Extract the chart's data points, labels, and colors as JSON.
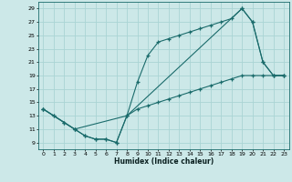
{
  "xlabel": "Humidex (Indice chaleur)",
  "bg_color": "#cce8e8",
  "line_color": "#1a6b6b",
  "grid_color": "#aad4d4",
  "xlim": [
    -0.5,
    23.5
  ],
  "ylim": [
    8.0,
    30.0
  ],
  "xticks": [
    0,
    1,
    2,
    3,
    4,
    5,
    6,
    7,
    8,
    9,
    10,
    11,
    12,
    13,
    14,
    15,
    16,
    17,
    18,
    19,
    20,
    21,
    22,
    23
  ],
  "yticks": [
    9,
    11,
    13,
    15,
    17,
    19,
    21,
    23,
    25,
    27,
    29
  ],
  "line1_x": [
    0,
    1,
    2,
    3,
    4,
    5,
    6,
    7,
    8,
    9,
    10,
    11,
    12,
    13,
    14,
    15,
    16,
    17,
    18,
    19,
    20,
    21,
    22,
    23
  ],
  "line1_y": [
    14,
    13,
    12,
    11,
    10,
    9.5,
    9.5,
    9,
    13,
    18,
    22,
    24,
    24.5,
    25,
    25.5,
    26,
    26.5,
    27,
    27.5,
    29,
    27,
    21,
    19,
    19
  ],
  "line2_x": [
    0,
    1,
    2,
    3,
    4,
    5,
    6,
    7,
    8,
    9,
    10,
    11,
    12,
    13,
    14,
    15,
    16,
    17,
    18,
    19,
    20,
    21,
    22,
    23
  ],
  "line2_y": [
    14,
    13,
    12,
    11,
    10,
    9.5,
    9.5,
    9,
    13,
    14,
    14.5,
    15,
    15.5,
    16,
    16.5,
    17,
    17.5,
    18,
    18.5,
    19,
    19,
    19,
    19,
    19
  ],
  "line3_x": [
    0,
    3,
    8,
    19,
    20,
    21,
    22,
    23
  ],
  "line3_y": [
    14,
    11,
    13,
    29,
    27,
    21,
    19,
    19
  ]
}
